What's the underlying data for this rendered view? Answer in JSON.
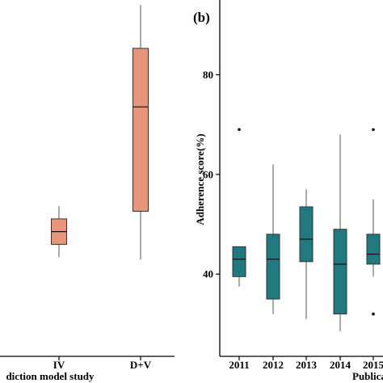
{
  "chart_data": [
    {
      "type": "boxplot",
      "panel_label": "",
      "xlabel": "diction model study",
      "ylabel": "",
      "ylim": [
        25,
        95
      ],
      "color": "#E8967A",
      "categories": [
        "IV",
        "D+V"
      ],
      "boxes": [
        {
          "category": "IV",
          "min": 44.5,
          "q1": 47,
          "median": 49.5,
          "q3": 52,
          "max": 54.5,
          "outliers": []
        },
        {
          "category": "D+V",
          "min": 44,
          "q1": 53.5,
          "median": 74,
          "q3": 85.5,
          "max": 94,
          "outliers": []
        }
      ]
    },
    {
      "type": "boxplot",
      "panel_label": "(b)",
      "xlabel": "Publica",
      "ylabel": "Adherence score(%)",
      "ylim": [
        23.5,
        95
      ],
      "yticks": [
        40,
        60,
        80
      ],
      "color": "#1F7A80",
      "categories": [
        "2011",
        "2012",
        "2013",
        "2014",
        "2015"
      ],
      "boxes": [
        {
          "category": "2011",
          "min": 37.5,
          "q1": 39.5,
          "median": 43,
          "q3": 45.5,
          "max": 45.5,
          "outliers": [
            69
          ]
        },
        {
          "category": "2012",
          "min": 32,
          "q1": 35,
          "median": 43,
          "q3": 48,
          "max": 62,
          "outliers": []
        },
        {
          "category": "2013",
          "min": 31,
          "q1": 42.5,
          "median": 47,
          "q3": 53.5,
          "max": 57,
          "outliers": []
        },
        {
          "category": "2014",
          "min": 28.5,
          "q1": 32,
          "median": 42,
          "q3": 49,
          "max": 68,
          "outliers": []
        },
        {
          "category": "2015",
          "min": 39.5,
          "q1": 42,
          "median": 44,
          "q3": 48,
          "max": 55,
          "outliers": [
            69,
            32
          ]
        }
      ]
    }
  ]
}
